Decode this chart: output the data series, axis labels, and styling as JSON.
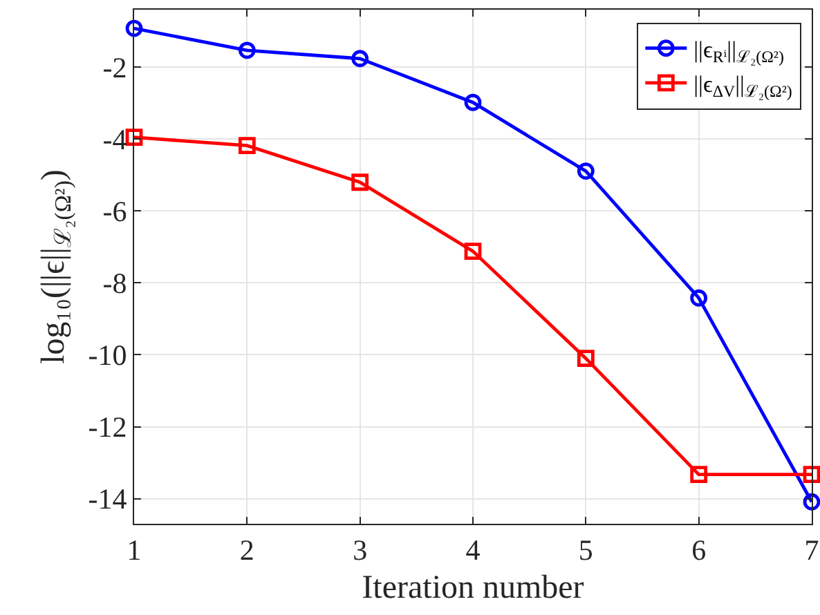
{
  "chart_data": {
    "type": "line",
    "xlabel": "Iteration number",
    "ylabel": "log₁₀(||ϵ||$_{ℒ₂(Ω²)}$)",
    "x": [
      1,
      2,
      3,
      4,
      5,
      6,
      7
    ],
    "series": [
      {
        "name": "||ϵ$_{Rⁱ}$||$_{ℒ₂(Ω²)}$",
        "color": "#0000ff",
        "marker": "circle",
        "values": [
          -0.92,
          -1.53,
          -1.76,
          -2.98,
          -4.89,
          -8.42,
          -14.09
        ]
      },
      {
        "name": "||ϵ$_{ΔV}$||$_{ℒ₂(Ω²)}$",
        "color": "#ff0000",
        "marker": "square",
        "values": [
          -3.95,
          -4.18,
          -5.2,
          -7.12,
          -10.1,
          -13.33,
          -13.33
        ]
      }
    ],
    "xlim": [
      1,
      7
    ],
    "xticks": [
      1,
      2,
      3,
      4,
      5,
      6,
      7
    ],
    "ylim": [
      -14.7,
      -0.4
    ],
    "yticks": [
      -14,
      -12,
      -10,
      -8,
      -6,
      -4,
      -2
    ],
    "grid": true,
    "legend": "top right",
    "line_style": "solid"
  }
}
